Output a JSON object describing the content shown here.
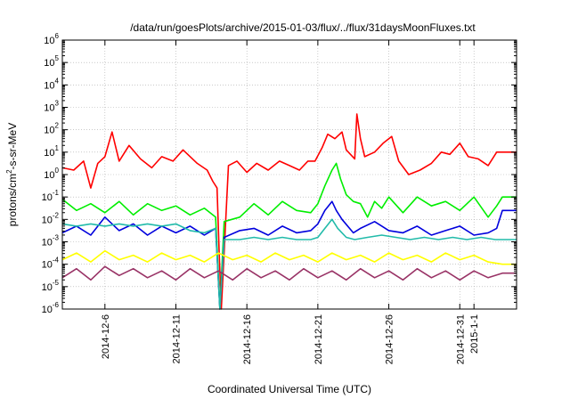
{
  "chart_data": {
    "type": "line",
    "title": "/data/run/goesPlots/archive/2015-01-03/flux/../flux/31daysMoonFluxes.txt",
    "xlabel": "Coordinated Universal Time (UTC)",
    "ylabel_parts": {
      "base": "protons/cm",
      "sup": "2",
      "rest": "-s-sr-MeV"
    },
    "yscale": "log",
    "ylim_exp": [
      -6,
      6
    ],
    "y_tick_exponents": [
      -6,
      -5,
      -4,
      -3,
      -2,
      -1,
      0,
      1,
      2,
      3,
      4,
      5,
      6
    ],
    "xlim_days": [
      0,
      32
    ],
    "x_ticks": [
      {
        "label": "2014-12-6",
        "day": 3
      },
      {
        "label": "2014-12-11",
        "day": 8
      },
      {
        "label": "2014-12-16",
        "day": 13
      },
      {
        "label": "2014-12-21",
        "day": 18
      },
      {
        "label": "2014-12-26",
        "day": 23
      },
      {
        "label": "2014-12-31",
        "day": 28
      },
      {
        "label": "2015-1-1",
        "day": 29
      }
    ],
    "grid": true,
    "series": [
      {
        "color": "#ff0000",
        "points": [
          [
            0,
            0.3
          ],
          [
            0.8,
            0.2
          ],
          [
            1.5,
            0.6
          ],
          [
            2,
            -0.6
          ],
          [
            2.5,
            0.5
          ],
          [
            3,
            0.8
          ],
          [
            3.5,
            1.9
          ],
          [
            4,
            0.6
          ],
          [
            4.7,
            1.3
          ],
          [
            5.5,
            0.7
          ],
          [
            6.3,
            0.3
          ],
          [
            7,
            0.8
          ],
          [
            7.8,
            0.6
          ],
          [
            8.5,
            1.1
          ],
          [
            9.5,
            0.5
          ],
          [
            10.2,
            0.2
          ],
          [
            10.6,
            -0.3
          ],
          [
            10.9,
            -0.6
          ],
          [
            11.05,
            -3.5
          ],
          [
            11.2,
            -6
          ],
          [
            11.7,
            0.4
          ],
          [
            12.3,
            0.6
          ],
          [
            13,
            0.1
          ],
          [
            13.7,
            0.5
          ],
          [
            14.5,
            0.2
          ],
          [
            15.3,
            0.6
          ],
          [
            16,
            0.4
          ],
          [
            16.7,
            0.2
          ],
          [
            17.3,
            0.6
          ],
          [
            17.8,
            0.6
          ],
          [
            18.3,
            1.2
          ],
          [
            18.7,
            1.8
          ],
          [
            19.2,
            1.6
          ],
          [
            19.7,
            1.9
          ],
          [
            20,
            1.1
          ],
          [
            20.3,
            0.9
          ],
          [
            20.6,
            0.7
          ],
          [
            20.75,
            2.7
          ],
          [
            21,
            1.6
          ],
          [
            21.3,
            0.8
          ],
          [
            22,
            1.0
          ],
          [
            22.6,
            1.4
          ],
          [
            23.2,
            1.7
          ],
          [
            23.7,
            0.6
          ],
          [
            24.4,
            0.0
          ],
          [
            25.2,
            0.2
          ],
          [
            26,
            0.5
          ],
          [
            26.7,
            1.0
          ],
          [
            27.3,
            0.9
          ],
          [
            28,
            1.4
          ],
          [
            28.6,
            0.8
          ],
          [
            29.3,
            0.7
          ],
          [
            30,
            0.4
          ],
          [
            30.6,
            1.0
          ],
          [
            31,
            1.0
          ],
          [
            32,
            1.0
          ]
        ]
      },
      {
        "color": "#00ee00",
        "points": [
          [
            0,
            -1.1
          ],
          [
            1,
            -1.6
          ],
          [
            2,
            -1.3
          ],
          [
            3,
            -1.7
          ],
          [
            4,
            -1.2
          ],
          [
            5,
            -1.8
          ],
          [
            6,
            -1.3
          ],
          [
            7,
            -1.6
          ],
          [
            8,
            -1.4
          ],
          [
            9,
            -1.8
          ],
          [
            10,
            -1.5
          ],
          [
            10.8,
            -1.9
          ],
          [
            11.1,
            -6
          ],
          [
            11.4,
            -2.1
          ],
          [
            12.5,
            -1.9
          ],
          [
            13.5,
            -1.3
          ],
          [
            14.5,
            -1.8
          ],
          [
            15.5,
            -1.2
          ],
          [
            16.5,
            -1.6
          ],
          [
            17.5,
            -1.7
          ],
          [
            18,
            -1.3
          ],
          [
            18.5,
            -0.5
          ],
          [
            19,
            0.2
          ],
          [
            19.3,
            0.5
          ],
          [
            19.6,
            -0.2
          ],
          [
            20,
            -0.9
          ],
          [
            20.5,
            -1.2
          ],
          [
            21,
            -1.3
          ],
          [
            21.5,
            -1.9
          ],
          [
            22,
            -1.2
          ],
          [
            22.5,
            -1.5
          ],
          [
            23,
            -1.0
          ],
          [
            24,
            -1.7
          ],
          [
            25,
            -1.0
          ],
          [
            26,
            -1.4
          ],
          [
            27,
            -1.2
          ],
          [
            28,
            -1.6
          ],
          [
            29,
            -1.0
          ],
          [
            30,
            -1.9
          ],
          [
            30.6,
            -1.4
          ],
          [
            31,
            -1.0
          ],
          [
            32,
            -1.0
          ]
        ]
      },
      {
        "color": "#0000dd",
        "points": [
          [
            0,
            -2.6
          ],
          [
            1,
            -2.3
          ],
          [
            2,
            -2.7
          ],
          [
            3,
            -1.9
          ],
          [
            4,
            -2.5
          ],
          [
            5,
            -2.2
          ],
          [
            6,
            -2.7
          ],
          [
            7,
            -2.3
          ],
          [
            8,
            -2.6
          ],
          [
            9,
            -2.3
          ],
          [
            10,
            -2.7
          ],
          [
            10.8,
            -2.4
          ],
          [
            11.1,
            -6
          ],
          [
            11.4,
            -2.8
          ],
          [
            12.5,
            -2.5
          ],
          [
            13.5,
            -2.4
          ],
          [
            14.5,
            -2.7
          ],
          [
            15.5,
            -2.3
          ],
          [
            16.5,
            -2.6
          ],
          [
            17.5,
            -2.5
          ],
          [
            18,
            -2.2
          ],
          [
            18.5,
            -1.6
          ],
          [
            19,
            -1.2
          ],
          [
            19.3,
            -1.6
          ],
          [
            19.7,
            -2.0
          ],
          [
            20.5,
            -2.6
          ],
          [
            21,
            -2.4
          ],
          [
            22,
            -2.1
          ],
          [
            23,
            -2.5
          ],
          [
            24,
            -2.6
          ],
          [
            25,
            -2.3
          ],
          [
            26,
            -2.7
          ],
          [
            27,
            -2.5
          ],
          [
            28,
            -2.3
          ],
          [
            29,
            -2.7
          ],
          [
            30,
            -2.6
          ],
          [
            30.6,
            -2.4
          ],
          [
            31,
            -1.6
          ],
          [
            32,
            -1.6
          ]
        ]
      },
      {
        "color": "#22bbaa",
        "points": [
          [
            0,
            -2.2
          ],
          [
            1,
            -2.3
          ],
          [
            2,
            -2.2
          ],
          [
            3,
            -2.3
          ],
          [
            4,
            -2.2
          ],
          [
            5,
            -2.3
          ],
          [
            6,
            -2.2
          ],
          [
            7,
            -2.3
          ],
          [
            8,
            -2.2
          ],
          [
            9,
            -2.5
          ],
          [
            10,
            -2.6
          ],
          [
            10.8,
            -2.4
          ],
          [
            11.1,
            -6
          ],
          [
            11.4,
            -2.9
          ],
          [
            12.5,
            -2.9
          ],
          [
            13.5,
            -2.8
          ],
          [
            14.5,
            -2.9
          ],
          [
            15.5,
            -2.8
          ],
          [
            16.5,
            -2.9
          ],
          [
            17.5,
            -2.9
          ],
          [
            18,
            -2.8
          ],
          [
            18.5,
            -2.4
          ],
          [
            19,
            -2.0
          ],
          [
            19.4,
            -2.4
          ],
          [
            20,
            -2.8
          ],
          [
            20.6,
            -2.9
          ],
          [
            21.5,
            -2.8
          ],
          [
            22.5,
            -2.7
          ],
          [
            23.5,
            -2.8
          ],
          [
            24.5,
            -2.9
          ],
          [
            25.5,
            -2.8
          ],
          [
            26.5,
            -2.9
          ],
          [
            27.5,
            -2.8
          ],
          [
            28.5,
            -2.9
          ],
          [
            29.5,
            -2.8
          ],
          [
            30.5,
            -2.9
          ],
          [
            31,
            -2.9
          ],
          [
            32,
            -2.9
          ]
        ]
      },
      {
        "color": "#ffff00",
        "points": [
          [
            0,
            -3.8
          ],
          [
            1,
            -3.5
          ],
          [
            2,
            -3.9
          ],
          [
            3,
            -3.4
          ],
          [
            4,
            -3.8
          ],
          [
            5,
            -3.6
          ],
          [
            6,
            -3.9
          ],
          [
            7,
            -3.5
          ],
          [
            8,
            -3.8
          ],
          [
            9,
            -3.6
          ],
          [
            10,
            -3.9
          ],
          [
            11,
            -3.5
          ],
          [
            12,
            -3.8
          ],
          [
            13,
            -3.6
          ],
          [
            14,
            -3.9
          ],
          [
            15,
            -3.5
          ],
          [
            16,
            -3.8
          ],
          [
            17,
            -3.6
          ],
          [
            18,
            -3.9
          ],
          [
            19,
            -3.5
          ],
          [
            20,
            -3.8
          ],
          [
            21,
            -3.6
          ],
          [
            22,
            -3.9
          ],
          [
            23,
            -3.5
          ],
          [
            24,
            -3.8
          ],
          [
            25,
            -3.6
          ],
          [
            26,
            -3.9
          ],
          [
            27,
            -3.5
          ],
          [
            28,
            -3.8
          ],
          [
            29,
            -3.6
          ],
          [
            30,
            -3.9
          ],
          [
            31,
            -4.0
          ],
          [
            32,
            -4.0
          ]
        ]
      },
      {
        "color": "#993366",
        "points": [
          [
            0,
            -4.6
          ],
          [
            1,
            -4.2
          ],
          [
            2,
            -4.7
          ],
          [
            3,
            -4.1
          ],
          [
            4,
            -4.5
          ],
          [
            5,
            -4.2
          ],
          [
            6,
            -4.6
          ],
          [
            7,
            -4.3
          ],
          [
            8,
            -4.7
          ],
          [
            9,
            -4.2
          ],
          [
            10,
            -4.6
          ],
          [
            11,
            -4.3
          ],
          [
            12,
            -4.7
          ],
          [
            13,
            -4.2
          ],
          [
            14,
            -4.6
          ],
          [
            15,
            -4.3
          ],
          [
            16,
            -4.7
          ],
          [
            17,
            -4.2
          ],
          [
            18,
            -4.6
          ],
          [
            19,
            -4.3
          ],
          [
            20,
            -4.7
          ],
          [
            21,
            -4.2
          ],
          [
            22,
            -4.6
          ],
          [
            23,
            -4.3
          ],
          [
            24,
            -4.7
          ],
          [
            25,
            -4.2
          ],
          [
            26,
            -4.6
          ],
          [
            27,
            -4.3
          ],
          [
            28,
            -4.7
          ],
          [
            29,
            -4.3
          ],
          [
            30,
            -4.6
          ],
          [
            31,
            -4.4
          ],
          [
            32,
            -4.4
          ]
        ]
      }
    ]
  }
}
